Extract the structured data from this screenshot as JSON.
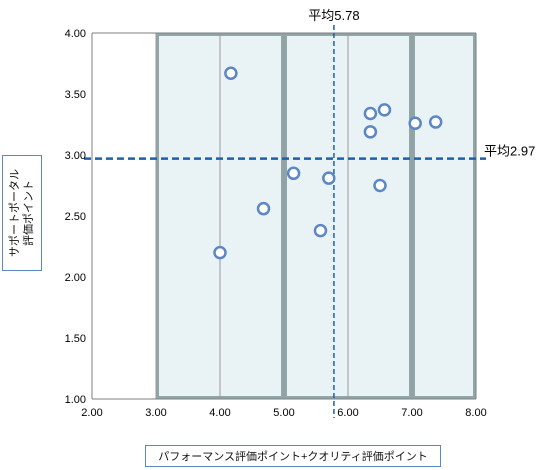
{
  "chart_data": {
    "type": "scatter",
    "xlabel": "パフォーマンス評価ポイント+クオリティ評価ポイント",
    "ylabel": "サポートポータル\n評価ポイント",
    "xlim": [
      2.0,
      8.0
    ],
    "ylim": [
      1.0,
      4.0
    ],
    "x_ticks": [
      "2.00",
      "3.00",
      "4.00",
      "5.00",
      "6.00",
      "7.00",
      "8.00"
    ],
    "y_ticks": [
      "1.00",
      "1.50",
      "2.00",
      "2.50",
      "3.00",
      "3.50",
      "4.00"
    ],
    "grid": "vertical",
    "regions": [
      {
        "x0": 3.0,
        "x1": 5.0
      },
      {
        "x0": 5.0,
        "x1": 7.0
      },
      {
        "x0": 7.0,
        "x1": 8.0
      }
    ],
    "reference_lines": {
      "x_mean": {
        "value": 5.78,
        "label": "平均5.78"
      },
      "y_mean": {
        "value": 2.97,
        "label": "平均2.97"
      }
    },
    "points": [
      {
        "x": 4.17,
        "y": 3.67
      },
      {
        "x": 4.0,
        "y": 2.2
      },
      {
        "x": 4.68,
        "y": 2.56
      },
      {
        "x": 5.15,
        "y": 2.85
      },
      {
        "x": 5.57,
        "y": 2.38
      },
      {
        "x": 5.7,
        "y": 2.81
      },
      {
        "x": 6.35,
        "y": 3.34
      },
      {
        "x": 6.35,
        "y": 3.19
      },
      {
        "x": 6.57,
        "y": 3.37
      },
      {
        "x": 6.5,
        "y": 2.75
      },
      {
        "x": 7.05,
        "y": 3.26
      },
      {
        "x": 7.37,
        "y": 3.27
      }
    ]
  },
  "colors": {
    "marker": "#5b87c6",
    "mean_line": "#1f5fa8",
    "region_fill": "#e9f3f6",
    "region_border": "#8fa7a9",
    "axis": "#7f7f7f"
  }
}
